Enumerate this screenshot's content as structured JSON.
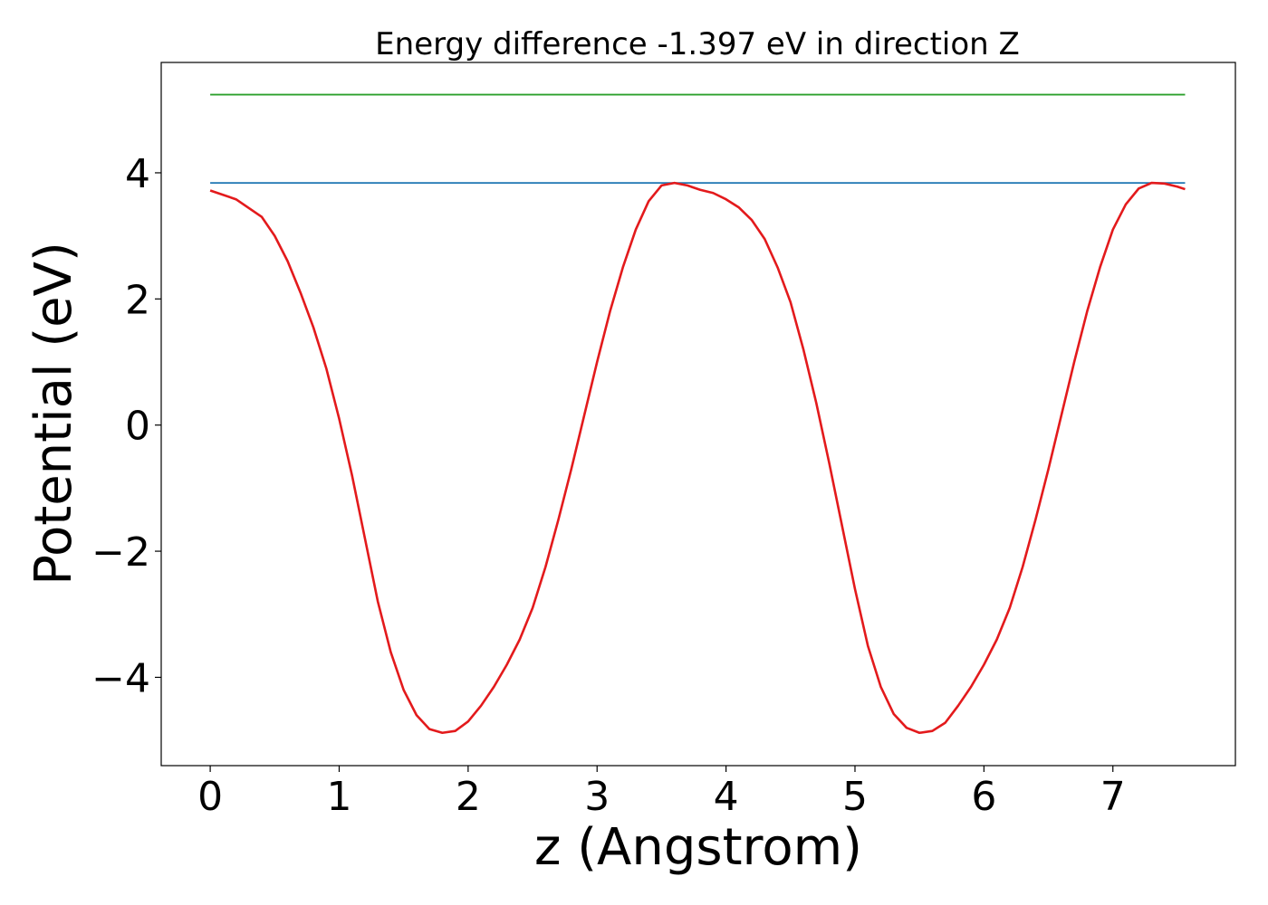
{
  "chart_data": {
    "type": "line",
    "title": "Energy difference -1.397 eV in direction Z",
    "xlabel": "z (Angstrom)",
    "ylabel": "Potential (eV)",
    "xlim": [
      -0.38,
      7.95
    ],
    "ylim": [
      -5.4,
      5.75
    ],
    "xticks": [
      0,
      1,
      2,
      3,
      4,
      5,
      6,
      7
    ],
    "xtick_labels": [
      "0",
      "1",
      "2",
      "3",
      "4",
      "5",
      "6",
      "7"
    ],
    "yticks": [
      -4,
      -2,
      0,
      2,
      4
    ],
    "ytick_labels": [
      "−4",
      "−2",
      "0",
      "2",
      "4"
    ],
    "grid": false,
    "legend": "none",
    "series": [
      {
        "color": "#2ca02c",
        "x": [
          0,
          7.56
        ],
        "y": [
          5.24,
          5.24
        ]
      },
      {
        "color": "#1f77b4",
        "x": [
          0,
          7.56
        ],
        "y": [
          3.84,
          3.84
        ]
      },
      {
        "color": "#e31a1c",
        "x": [
          0,
          0.2,
          0.4,
          0.5,
          0.6,
          0.7,
          0.8,
          0.9,
          1.0,
          1.1,
          1.2,
          1.3,
          1.4,
          1.5,
          1.6,
          1.7,
          1.8,
          1.9,
          2.0,
          2.1,
          2.2,
          2.3,
          2.4,
          2.5,
          2.6,
          2.7,
          2.8,
          2.9,
          3.0,
          3.1,
          3.2,
          3.3,
          3.4,
          3.5,
          3.6,
          3.7,
          3.8,
          3.9,
          4.0,
          4.1,
          4.2,
          4.3,
          4.4,
          4.5,
          4.6,
          4.7,
          4.8,
          4.9,
          5.0,
          5.1,
          5.2,
          5.3,
          5.4,
          5.5,
          5.6,
          5.7,
          5.8,
          5.9,
          6.0,
          6.1,
          6.2,
          6.3,
          6.4,
          6.5,
          6.6,
          6.7,
          6.8,
          6.9,
          7.0,
          7.1,
          7.2,
          7.3,
          7.4,
          7.5,
          7.56
        ],
        "y": [
          3.72,
          3.58,
          3.3,
          3.0,
          2.6,
          2.1,
          1.55,
          0.9,
          0.1,
          -0.8,
          -1.8,
          -2.8,
          -3.6,
          -4.2,
          -4.6,
          -4.82,
          -4.88,
          -4.85,
          -4.7,
          -4.45,
          -4.15,
          -3.8,
          -3.4,
          -2.9,
          -2.25,
          -1.5,
          -0.7,
          0.15,
          1.0,
          1.8,
          2.5,
          3.1,
          3.55,
          3.8,
          3.84,
          3.8,
          3.73,
          3.68,
          3.58,
          3.45,
          3.25,
          2.95,
          2.5,
          1.95,
          1.2,
          0.35,
          -0.6,
          -1.6,
          -2.6,
          -3.5,
          -4.15,
          -4.58,
          -4.8,
          -4.88,
          -4.85,
          -4.72,
          -4.45,
          -4.15,
          -3.8,
          -3.4,
          -2.9,
          -2.25,
          -1.5,
          -0.7,
          0.15,
          1.0,
          1.8,
          2.5,
          3.1,
          3.5,
          3.75,
          3.84,
          3.83,
          3.78,
          3.74
        ]
      }
    ]
  }
}
